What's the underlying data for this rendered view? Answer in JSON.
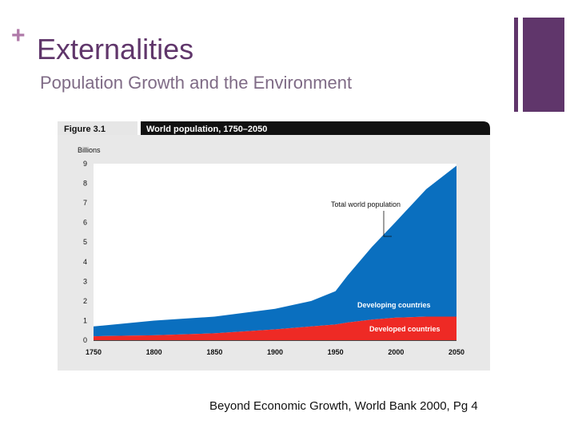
{
  "slide": {
    "plus": "+",
    "title": "Externalities",
    "subtitle": "Population Growth and the Environment",
    "caption": "Beyond Economic Growth, World Bank 2000, Pg 4"
  },
  "colors": {
    "accent": "#60366b",
    "developing": "#0a6fbf",
    "developed": "#ee2a25",
    "panel": "#e8e8e8"
  },
  "chart_data": {
    "type": "area",
    "figure_label": "Figure 3.1",
    "title": "World population, 1750–2050",
    "ylabel": "Billions",
    "xlim": [
      1750,
      2050
    ],
    "ylim": [
      0,
      9
    ],
    "yticks": [
      "0",
      "1",
      "2",
      "3",
      "4",
      "5",
      "6",
      "7",
      "8",
      "9"
    ],
    "xticks": [
      "1750",
      "1800",
      "1850",
      "1900",
      "1950",
      "2000",
      "2050"
    ],
    "x": [
      1750,
      1800,
      1850,
      1900,
      1930,
      1950,
      1960,
      1980,
      2000,
      2025,
      2050
    ],
    "series": [
      {
        "name": "Developed countries",
        "values": [
          0.2,
          0.25,
          0.35,
          0.55,
          0.7,
          0.8,
          0.9,
          1.05,
          1.15,
          1.2,
          1.2
        ]
      },
      {
        "name": "Developing countries",
        "values": [
          0.5,
          0.75,
          0.85,
          1.05,
          1.3,
          1.7,
          2.4,
          3.7,
          4.9,
          6.5,
          7.7
        ]
      }
    ],
    "annotations": {
      "total": "Total world population",
      "developing": "Developing countries",
      "developed": "Developed countries"
    }
  }
}
